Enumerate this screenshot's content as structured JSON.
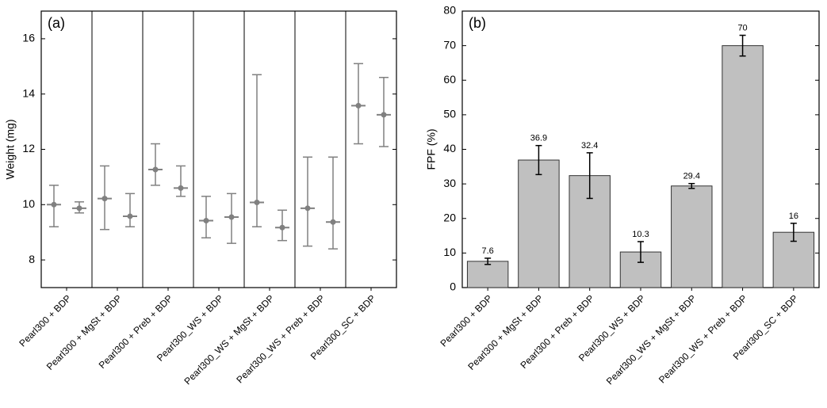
{
  "chart_data": [
    {
      "type": "errorbar",
      "annotation": "(a)",
      "ylabel": "Weight (mg)",
      "categories": [
        "Pearl300 + BDP",
        "Pearl300 + MgSt + BDP",
        "Pearl300 + Preb + BDP",
        "Pearl300_WS + BDP",
        "Pearl300_WS + MgSt + BDP",
        "Pearl300_WS + Preb + BDP",
        "Pearl300_SC + BDP"
      ],
      "series": [
        {
          "color": "#808080",
          "values": [
            10.0,
            10.22,
            11.27,
            9.42,
            10.08,
            9.87,
            13.58
          ],
          "error_minus": [
            0.8,
            1.12,
            0.57,
            0.62,
            0.88,
            1.37,
            1.38
          ],
          "error_plus": [
            0.7,
            1.18,
            0.93,
            0.88,
            4.62,
            1.85,
            1.52
          ]
        },
        {
          "color": "#808080",
          "values": [
            9.87,
            9.58,
            10.6,
            9.55,
            9.17,
            9.37,
            13.25
          ],
          "error_minus": [
            0.17,
            0.38,
            0.3,
            0.95,
            0.47,
            0.97,
            1.15
          ],
          "error_plus": [
            0.23,
            0.82,
            0.8,
            0.85,
            0.63,
            2.35,
            1.35
          ]
        }
      ],
      "ylim": [
        7,
        17
      ],
      "yticks": [
        8,
        10,
        12,
        14,
        16
      ],
      "grid": false
    },
    {
      "type": "bar",
      "annotation": "(b)",
      "ylabel": "FPF (%)",
      "categories": [
        "Pearl300 + BDP",
        "Pearl300 + MgSt + BDP",
        "Pearl300 + Preb + BDP",
        "Pearl300_WS + BDP",
        "Pearl300_WS + MgSt + BDP",
        "Pearl300_WS + Preb + BDP",
        "Pearl300_SC + BDP"
      ],
      "values": [
        7.6,
        36.9,
        32.4,
        10.3,
        29.4,
        70,
        16
      ],
      "errors": [
        0.9,
        4.2,
        6.6,
        3.0,
        0.7,
        3.0,
        2.6
      ],
      "color": "#c0c0c0",
      "ylim": [
        0,
        80
      ],
      "yticks": [
        0,
        10,
        20,
        30,
        40,
        50,
        60,
        70,
        80
      ],
      "grid": false
    }
  ]
}
